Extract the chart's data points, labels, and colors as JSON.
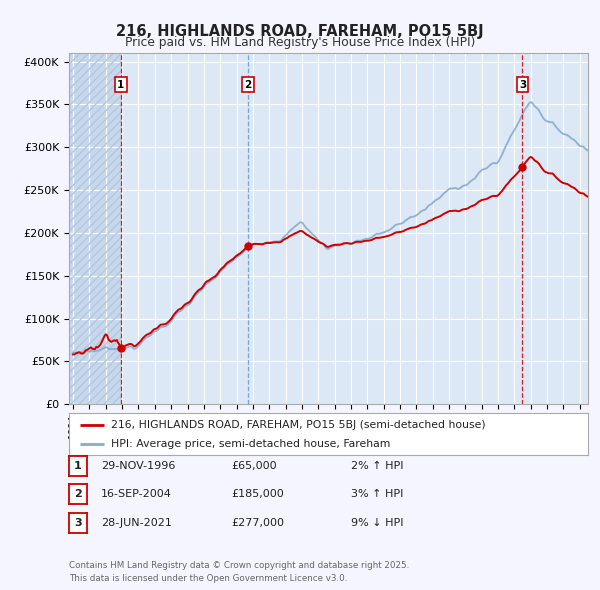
{
  "title": "216, HIGHLANDS ROAD, FAREHAM, PO15 5BJ",
  "subtitle": "Price paid vs. HM Land Registry's House Price Index (HPI)",
  "background_color": "#f5f5ff",
  "plot_bg_color": "#dce8f5",
  "plot_bg_color_hatched": "#c8d8ec",
  "grid_color": "#ffffff",
  "ylim": [
    0,
    410000
  ],
  "yticks": [
    0,
    50000,
    100000,
    150000,
    200000,
    250000,
    300000,
    350000,
    400000
  ],
  "ytick_labels": [
    "£0",
    "£50K",
    "£100K",
    "£150K",
    "£200K",
    "£250K",
    "£300K",
    "£350K",
    "£400K"
  ],
  "sale_dates_num": [
    1996.91,
    2004.71,
    2021.49
  ],
  "sale_prices": [
    65000,
    185000,
    277000
  ],
  "sale_labels": [
    "1",
    "2",
    "3"
  ],
  "vline_colors": [
    "#cc0000",
    "#6699cc",
    "#cc0000"
  ],
  "vline_style": "--",
  "legend_line1": "216, HIGHLANDS ROAD, FAREHAM, PO15 5BJ (semi-detached house)",
  "legend_line2": "HPI: Average price, semi-detached house, Fareham",
  "sale_line_color": "#cc0000",
  "hpi_line_color": "#88aacc",
  "table_rows": [
    [
      "1",
      "29-NOV-1996",
      "£65,000",
      "2% ↑ HPI"
    ],
    [
      "2",
      "16-SEP-2004",
      "£185,000",
      "3% ↑ HPI"
    ],
    [
      "3",
      "28-JUN-2021",
      "£277,000",
      "9% ↓ HPI"
    ]
  ],
  "footer": "Contains HM Land Registry data © Crown copyright and database right 2025.\nThis data is licensed under the Open Government Licence v3.0.",
  "xmin": 1993.75,
  "xmax": 2025.5
}
